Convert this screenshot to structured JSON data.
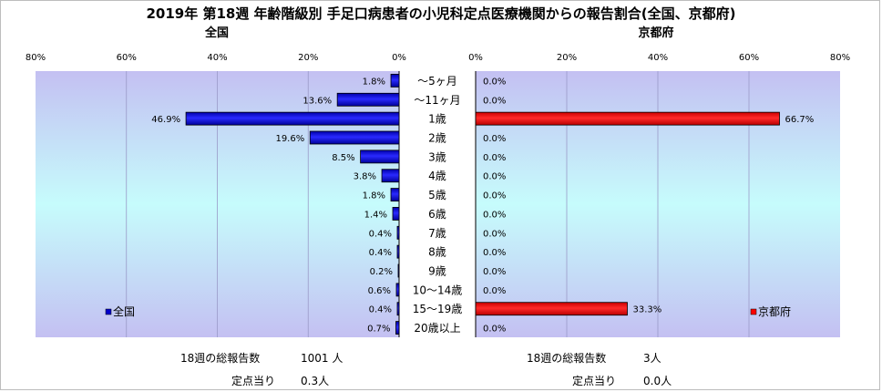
{
  "title": "2019年 第18週 年齢階級別 手足口病患者の小児科定点医療機関からの報告割合(全国、京都府)",
  "chart_data": [
    {
      "type": "bar",
      "orientation": "horizontal",
      "title": "全国",
      "series": [
        {
          "name": "全国",
          "color": "#0000cc",
          "values": [
            1.8,
            13.6,
            46.9,
            19.6,
            8.5,
            3.8,
            1.8,
            1.4,
            0.4,
            0.4,
            0.2,
            0.6,
            0.4,
            0.7
          ]
        }
      ],
      "value_labels": [
        "1.8%",
        "13.6%",
        "46.9%",
        "19.6%",
        "8.5%",
        "3.8%",
        "1.8%",
        "1.4%",
        "0.4%",
        "0.4%",
        "0.2%",
        "0.6%",
        "0.4%",
        "0.7%"
      ],
      "xlim": [
        0,
        80
      ],
      "x_direction": "reversed",
      "ticks": [
        "80%",
        "60%",
        "40%",
        "20%",
        "0%"
      ],
      "grid": true,
      "legend": "bottom-left"
    },
    {
      "type": "bar",
      "orientation": "horizontal",
      "title": "京都府",
      "series": [
        {
          "name": "京都府",
          "color": "#ff0000",
          "values": [
            0,
            0,
            66.7,
            0,
            0,
            0,
            0,
            0,
            0,
            0,
            0,
            0,
            33.3,
            0
          ]
        }
      ],
      "value_labels": [
        "0.0%",
        "0.0%",
        "66.7%",
        "0.0%",
        "0.0%",
        "0.0%",
        "0.0%",
        "0.0%",
        "0.0%",
        "0.0%",
        "0.0%",
        "0.0%",
        "33.3%",
        "0.0%"
      ],
      "xlim": [
        0,
        80
      ],
      "ticks": [
        "0%",
        "20%",
        "40%",
        "60%",
        "80%"
      ],
      "grid": true,
      "legend": "bottom-right"
    }
  ],
  "categories": [
    "～5ヶ月",
    "～11ヶ月",
    "1歳",
    "2歳",
    "3歳",
    "4歳",
    "5歳",
    "6歳",
    "7歳",
    "8歳",
    "9歳",
    "10～14歳",
    "15～19歳",
    "20歳以上"
  ],
  "footer": {
    "national_total_label": "18週の総報告数",
    "national_total_value": "1001 人",
    "national_per_label": "定点当り",
    "national_per_value": "0.3人",
    "kyoto_total_label": "18週の総報告数",
    "kyoto_total_value": "3人",
    "kyoto_per_label": "定点当り",
    "kyoto_per_value": "0.0人"
  }
}
